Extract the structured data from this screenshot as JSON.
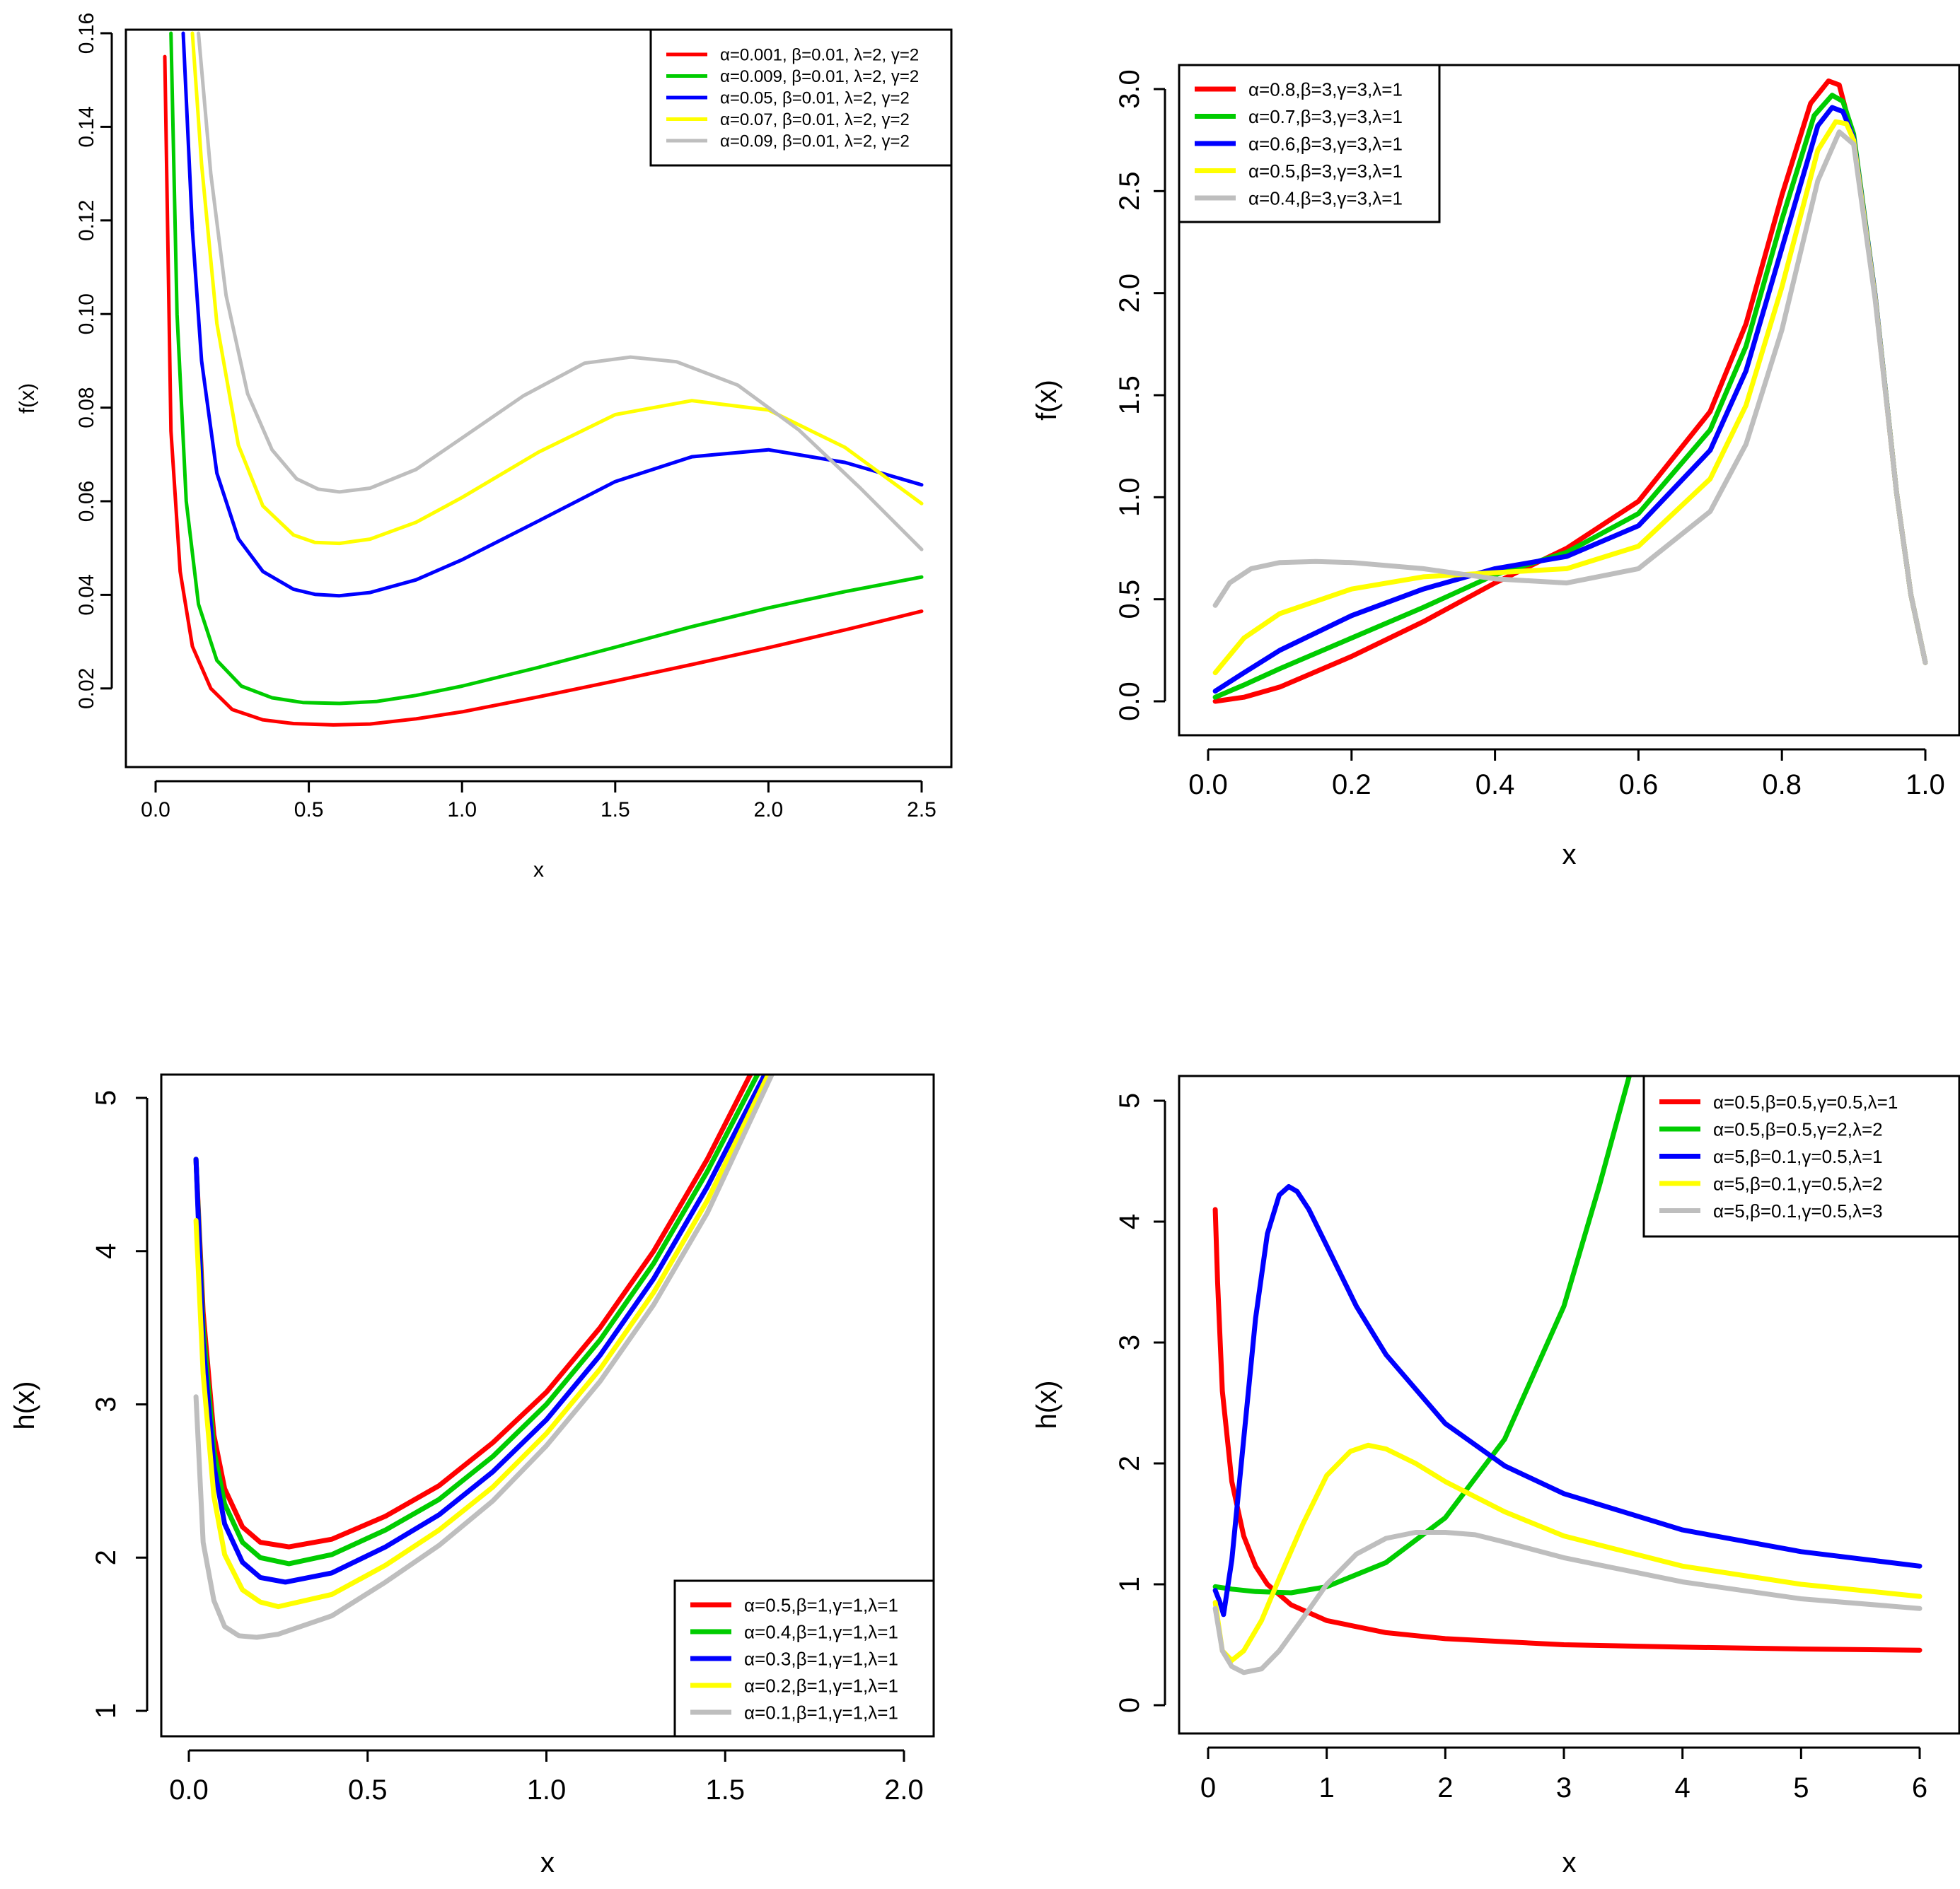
{
  "chart_data": [
    {
      "type": "line",
      "xlabel": "x",
      "ylabel": "f(x)",
      "xlim": [
        0.0,
        2.5
      ],
      "ylim": [
        0.01,
        0.16
      ],
      "xticks": [
        "0.0",
        "0.5",
        "1.0",
        "1.5",
        "2.0",
        "2.5"
      ],
      "yticks": [
        "0.02",
        "0.04",
        "0.06",
        "0.08",
        "0.10",
        "0.12",
        "0.14",
        "0.16"
      ],
      "legend_position": "top-right",
      "series": [
        {
          "name": "α=0.001, β=0.01, λ=2, γ=2",
          "color": "#ff0000",
          "x": [
            0.03,
            0.05,
            0.08,
            0.12,
            0.18,
            0.25,
            0.35,
            0.45,
            0.58,
            0.7,
            0.85,
            1.0,
            1.25,
            1.5,
            1.75,
            2.0,
            2.25,
            2.5
          ],
          "y": [
            0.155,
            0.075,
            0.045,
            0.029,
            0.02,
            0.0155,
            0.0133,
            0.0125,
            0.0122,
            0.0124,
            0.0135,
            0.015,
            0.0182,
            0.0216,
            0.0251,
            0.0287,
            0.0325,
            0.0365
          ]
        },
        {
          "name": "α=0.009, β=0.01, λ=2, γ=2",
          "color": "#00cc00",
          "x": [
            0.05,
            0.07,
            0.1,
            0.14,
            0.2,
            0.28,
            0.38,
            0.48,
            0.6,
            0.72,
            0.85,
            1.0,
            1.25,
            1.5,
            1.75,
            2.0,
            2.25,
            2.5
          ],
          "y": [
            0.16,
            0.1,
            0.06,
            0.038,
            0.026,
            0.0205,
            0.018,
            0.017,
            0.0168,
            0.0172,
            0.0185,
            0.0205,
            0.0245,
            0.0288,
            0.0332,
            0.0372,
            0.0407,
            0.0438
          ]
        },
        {
          "name": "α=0.05, β=0.01, λ=2, γ=2",
          "color": "#0000ff",
          "x": [
            0.09,
            0.12,
            0.15,
            0.2,
            0.27,
            0.35,
            0.45,
            0.52,
            0.6,
            0.7,
            0.85,
            1.0,
            1.25,
            1.5,
            1.75,
            2.0,
            2.25,
            2.5
          ],
          "y": [
            0.16,
            0.118,
            0.09,
            0.066,
            0.052,
            0.045,
            0.0412,
            0.0401,
            0.0398,
            0.0405,
            0.0432,
            0.0475,
            0.0558,
            0.0642,
            0.0695,
            0.071,
            0.0683,
            0.0635
          ]
        },
        {
          "name": "α=0.07, β=0.01, λ=2, γ=2",
          "color": "#ffff00",
          "x": [
            0.12,
            0.15,
            0.2,
            0.27,
            0.35,
            0.45,
            0.52,
            0.6,
            0.7,
            0.85,
            1.0,
            1.25,
            1.5,
            1.75,
            2.0,
            2.25,
            2.5
          ],
          "y": [
            0.16,
            0.132,
            0.098,
            0.072,
            0.059,
            0.0528,
            0.0512,
            0.051,
            0.0519,
            0.0555,
            0.0608,
            0.0705,
            0.0785,
            0.0815,
            0.0795,
            0.0715,
            0.0595
          ]
        },
        {
          "name": "α=0.09, β=0.01, λ=2, γ=2",
          "color": "#bebebe",
          "x": [
            0.14,
            0.18,
            0.23,
            0.3,
            0.38,
            0.46,
            0.53,
            0.6,
            0.7,
            0.85,
            1.0,
            1.2,
            1.4,
            1.55,
            1.7,
            1.9,
            2.1,
            2.3,
            2.5
          ],
          "y": [
            0.16,
            0.13,
            0.104,
            0.083,
            0.071,
            0.0648,
            0.0626,
            0.062,
            0.0628,
            0.0668,
            0.0735,
            0.0825,
            0.0895,
            0.0908,
            0.0898,
            0.0848,
            0.0752,
            0.0628,
            0.0497
          ]
        }
      ]
    },
    {
      "type": "line",
      "xlabel": "x",
      "ylabel": "f(x)",
      "xlim": [
        0.0,
        1.0
      ],
      "ylim": [
        0.0,
        3.0
      ],
      "xticks": [
        "0.0",
        "0.2",
        "0.4",
        "0.6",
        "0.8",
        "1.0"
      ],
      "yticks": [
        "0.0",
        "0.5",
        "1.0",
        "1.5",
        "2.0",
        "2.5",
        "3.0"
      ],
      "legend_position": "top-left",
      "series": [
        {
          "name": "α=0.8,β=3,γ=3,λ=1",
          "color": "#ff0000",
          "x": [
            0.01,
            0.05,
            0.1,
            0.2,
            0.3,
            0.4,
            0.5,
            0.6,
            0.7,
            0.75,
            0.8,
            0.84,
            0.865,
            0.88,
            0.9,
            0.93,
            0.96,
            0.98,
            1.0
          ],
          "y": [
            0.0,
            0.02,
            0.07,
            0.22,
            0.39,
            0.58,
            0.75,
            0.98,
            1.42,
            1.85,
            2.48,
            2.93,
            3.04,
            3.02,
            2.75,
            1.98,
            1.02,
            0.52,
            0.19
          ]
        },
        {
          "name": "α=0.7,β=3,γ=3,λ=1",
          "color": "#00cc00",
          "x": [
            0.01,
            0.05,
            0.1,
            0.2,
            0.3,
            0.4,
            0.5,
            0.6,
            0.7,
            0.75,
            0.8,
            0.845,
            0.87,
            0.885,
            0.9,
            0.93,
            0.96,
            0.98,
            1.0
          ],
          "y": [
            0.02,
            0.08,
            0.16,
            0.31,
            0.46,
            0.62,
            0.73,
            0.92,
            1.33,
            1.74,
            2.36,
            2.87,
            2.97,
            2.94,
            2.78,
            1.99,
            1.02,
            0.52,
            0.19
          ]
        },
        {
          "name": "α=0.6,β=3,γ=3,λ=1",
          "color": "#0000ff",
          "x": [
            0.01,
            0.05,
            0.1,
            0.2,
            0.3,
            0.4,
            0.5,
            0.6,
            0.7,
            0.75,
            0.8,
            0.85,
            0.87,
            0.885,
            0.9,
            0.93,
            0.96,
            0.98,
            1.0
          ],
          "y": [
            0.05,
            0.14,
            0.25,
            0.42,
            0.55,
            0.65,
            0.71,
            0.86,
            1.23,
            1.62,
            2.22,
            2.82,
            2.91,
            2.89,
            2.76,
            1.99,
            1.02,
            0.52,
            0.19
          ]
        },
        {
          "name": "α=0.5,β=3,γ=3,λ=1",
          "color": "#ffff00",
          "x": [
            0.01,
            0.05,
            0.1,
            0.2,
            0.3,
            0.4,
            0.5,
            0.6,
            0.7,
            0.75,
            0.8,
            0.85,
            0.875,
            0.89,
            0.9,
            0.93,
            0.96,
            0.98,
            1.0
          ],
          "y": [
            0.14,
            0.31,
            0.43,
            0.55,
            0.61,
            0.63,
            0.65,
            0.76,
            1.09,
            1.45,
            2.03,
            2.7,
            2.84,
            2.83,
            2.75,
            1.98,
            1.02,
            0.52,
            0.19
          ]
        },
        {
          "name": "α=0.4,β=3,γ=3,λ=1",
          "color": "#bebebe",
          "x": [
            0.01,
            0.03,
            0.06,
            0.1,
            0.15,
            0.2,
            0.3,
            0.4,
            0.5,
            0.6,
            0.7,
            0.75,
            0.8,
            0.85,
            0.88,
            0.9,
            0.93,
            0.96,
            0.98,
            1.0
          ],
          "y": [
            0.47,
            0.58,
            0.65,
            0.68,
            0.685,
            0.68,
            0.65,
            0.6,
            0.58,
            0.65,
            0.93,
            1.26,
            1.82,
            2.55,
            2.79,
            2.73,
            1.97,
            1.02,
            0.52,
            0.19
          ]
        }
      ]
    },
    {
      "type": "line",
      "xlabel": "x",
      "ylabel": "h(x)",
      "xlim": [
        0.0,
        2.0
      ],
      "ylim": [
        1,
        5
      ],
      "xticks": [
        "0.0",
        "0.5",
        "1.0",
        "1.5",
        "2.0"
      ],
      "yticks": [
        "1",
        "2",
        "3",
        "4",
        "5"
      ],
      "legend_position": "bottom-right",
      "series": [
        {
          "name": "α=0.5,β=1,γ=1,λ=1",
          "color": "#ff0000",
          "x": [
            0.02,
            0.04,
            0.07,
            0.1,
            0.15,
            0.2,
            0.28,
            0.4,
            0.55,
            0.7,
            0.85,
            1.0,
            1.15,
            1.3,
            1.45,
            1.57
          ],
          "y": [
            4.6,
            3.6,
            2.8,
            2.45,
            2.2,
            2.1,
            2.07,
            2.12,
            2.27,
            2.47,
            2.75,
            3.08,
            3.5,
            4.0,
            4.6,
            5.15
          ]
        },
        {
          "name": "α=0.4,β=1,γ=1,λ=1",
          "color": "#00cc00",
          "x": [
            0.02,
            0.04,
            0.07,
            0.1,
            0.15,
            0.2,
            0.28,
            0.4,
            0.55,
            0.7,
            0.85,
            1.0,
            1.15,
            1.3,
            1.45,
            1.59
          ],
          "y": [
            4.6,
            3.5,
            2.7,
            2.35,
            2.1,
            2.0,
            1.96,
            2.02,
            2.18,
            2.38,
            2.66,
            3.0,
            3.42,
            3.92,
            4.52,
            5.15
          ]
        },
        {
          "name": "α=0.3,β=1,γ=1,λ=1",
          "color": "#0000ff",
          "x": [
            0.02,
            0.04,
            0.07,
            0.1,
            0.15,
            0.2,
            0.27,
            0.4,
            0.55,
            0.7,
            0.85,
            1.0,
            1.15,
            1.3,
            1.45,
            1.61
          ],
          "y": [
            4.6,
            3.4,
            2.6,
            2.22,
            1.97,
            1.87,
            1.84,
            1.9,
            2.07,
            2.28,
            2.56,
            2.9,
            3.32,
            3.82,
            4.42,
            5.15
          ]
        },
        {
          "name": "α=0.2,β=1,γ=1,λ=1",
          "color": "#ffff00",
          "x": [
            0.02,
            0.04,
            0.07,
            0.1,
            0.15,
            0.2,
            0.25,
            0.4,
            0.55,
            0.7,
            0.85,
            1.0,
            1.15,
            1.3,
            1.45,
            1.62
          ],
          "y": [
            4.2,
            3.2,
            2.4,
            2.02,
            1.79,
            1.71,
            1.68,
            1.76,
            1.95,
            2.18,
            2.46,
            2.81,
            3.23,
            3.73,
            4.33,
            5.15
          ]
        },
        {
          "name": "α=0.1,β=1,γ=1,λ=1",
          "color": "#bebebe",
          "x": [
            0.02,
            0.04,
            0.07,
            0.1,
            0.14,
            0.19,
            0.25,
            0.4,
            0.55,
            0.7,
            0.85,
            1.0,
            1.15,
            1.3,
            1.45,
            1.63
          ],
          "y": [
            3.05,
            2.1,
            1.72,
            1.55,
            1.49,
            1.48,
            1.5,
            1.62,
            1.84,
            2.08,
            2.37,
            2.73,
            3.15,
            3.65,
            4.25,
            5.15
          ]
        }
      ]
    },
    {
      "type": "line",
      "xlabel": "x",
      "ylabel": "h(x)",
      "xlim": [
        0,
        6
      ],
      "ylim": [
        0,
        5
      ],
      "xticks": [
        "0",
        "1",
        "2",
        "3",
        "4",
        "5",
        "6"
      ],
      "yticks": [
        "0",
        "1",
        "2",
        "3",
        "4",
        "5"
      ],
      "legend_position": "top-right",
      "series": [
        {
          "name": "α=0.5,β=0.5,γ=0.5,λ=1",
          "color": "#ff0000",
          "x": [
            0.06,
            0.08,
            0.12,
            0.2,
            0.3,
            0.4,
            0.5,
            0.7,
            1.0,
            1.5,
            2.0,
            3.0,
            4.0,
            5.0,
            6.0
          ],
          "y": [
            4.1,
            3.5,
            2.6,
            1.85,
            1.4,
            1.15,
            1.0,
            0.83,
            0.7,
            0.6,
            0.55,
            0.5,
            0.48,
            0.465,
            0.455
          ]
        },
        {
          "name": "α=0.5,β=0.5,γ=2,λ=2",
          "color": "#00cc00",
          "x": [
            0.06,
            0.2,
            0.4,
            0.7,
            1.0,
            1.5,
            2.0,
            2.5,
            3.0,
            3.3,
            3.55
          ],
          "y": [
            0.98,
            0.96,
            0.94,
            0.93,
            0.98,
            1.18,
            1.55,
            2.2,
            3.3,
            4.3,
            5.2
          ]
        },
        {
          "name": "α=5,β=0.1,γ=0.5,λ=1",
          "color": "#0000ff",
          "x": [
            0.06,
            0.1,
            0.13,
            0.2,
            0.3,
            0.4,
            0.5,
            0.6,
            0.68,
            0.75,
            0.85,
            1.0,
            1.25,
            1.5,
            2.0,
            2.5,
            3.0,
            4.0,
            5.0,
            6.0
          ],
          "y": [
            0.95,
            0.85,
            0.75,
            1.2,
            2.2,
            3.2,
            3.9,
            4.22,
            4.29,
            4.25,
            4.1,
            3.8,
            3.3,
            2.9,
            2.33,
            1.98,
            1.75,
            1.45,
            1.27,
            1.15
          ]
        },
        {
          "name": "α=5,β=0.1,γ=0.5,λ=2",
          "color": "#ffff00",
          "x": [
            0.06,
            0.12,
            0.2,
            0.3,
            0.45,
            0.6,
            0.8,
            1.0,
            1.2,
            1.35,
            1.5,
            1.75,
            2.0,
            2.5,
            3.0,
            4.0,
            5.0,
            6.0
          ],
          "y": [
            0.85,
            0.45,
            0.37,
            0.45,
            0.7,
            1.05,
            1.5,
            1.9,
            2.1,
            2.15,
            2.12,
            2.0,
            1.85,
            1.6,
            1.4,
            1.15,
            1.0,
            0.9
          ]
        },
        {
          "name": "α=5,β=0.1,γ=0.5,λ=3",
          "color": "#bebebe",
          "x": [
            0.06,
            0.12,
            0.2,
            0.3,
            0.45,
            0.6,
            0.8,
            1.0,
            1.25,
            1.5,
            1.75,
            2.0,
            2.25,
            2.5,
            3.0,
            4.0,
            5.0,
            6.0
          ],
          "y": [
            0.8,
            0.45,
            0.32,
            0.27,
            0.3,
            0.45,
            0.72,
            1.0,
            1.25,
            1.38,
            1.43,
            1.43,
            1.41,
            1.35,
            1.22,
            1.02,
            0.88,
            0.8
          ]
        }
      ]
    }
  ]
}
